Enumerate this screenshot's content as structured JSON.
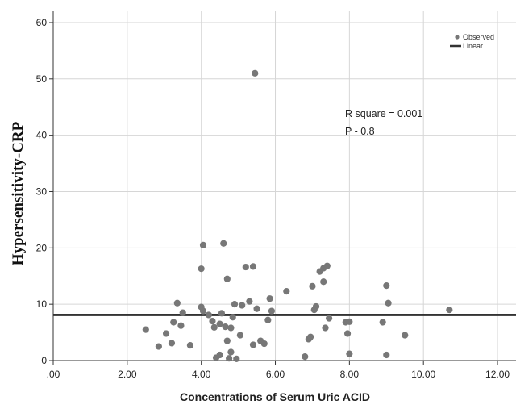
{
  "chart_data": {
    "type": "scatter",
    "title": "",
    "xlabel": "Concentrations of Serum Uric ACID",
    "ylabel": "Hypersensitivity-CRP",
    "xlim": [
      0,
      12.5
    ],
    "ylim": [
      0,
      62
    ],
    "x_ticks": [
      {
        "value": 0,
        "label": ".00"
      },
      {
        "value": 2,
        "label": "2.00"
      },
      {
        "value": 4,
        "label": "4.00"
      },
      {
        "value": 6,
        "label": "6.00"
      },
      {
        "value": 8,
        "label": "8.00"
      },
      {
        "value": 10,
        "label": "10.00"
      },
      {
        "value": 12,
        "label": "12.00"
      }
    ],
    "y_ticks": [
      {
        "value": 0,
        "label": "0"
      },
      {
        "value": 10,
        "label": "10"
      },
      {
        "value": 20,
        "label": "20"
      },
      {
        "value": 30,
        "label": "30"
      },
      {
        "value": 40,
        "label": "40"
      },
      {
        "value": 50,
        "label": "50"
      },
      {
        "value": 60,
        "label": "60"
      }
    ],
    "grid": true,
    "legend": {
      "position": "top-right",
      "entries": [
        {
          "label": "Observed",
          "marker": "point"
        },
        {
          "label": "Linear",
          "marker": "line"
        }
      ]
    },
    "annotations": [
      "R square = 0.001",
      "P - 0.8"
    ],
    "point_color": "#777777",
    "line_color": "#333333",
    "series": [
      {
        "name": "Observed",
        "points": [
          [
            2.5,
            5.5
          ],
          [
            2.85,
            2.5
          ],
          [
            3.05,
            4.8
          ],
          [
            3.2,
            3.1
          ],
          [
            3.25,
            6.8
          ],
          [
            3.35,
            10.2
          ],
          [
            3.45,
            6.2
          ],
          [
            3.5,
            8.5
          ],
          [
            3.7,
            2.7
          ],
          [
            4.05,
            20.5
          ],
          [
            4.0,
            16.3
          ],
          [
            4.0,
            9.5
          ],
          [
            4.05,
            8.8
          ],
          [
            4.2,
            8.1
          ],
          [
            4.3,
            7.0
          ],
          [
            4.35,
            5.9
          ],
          [
            4.4,
            0.5
          ],
          [
            4.5,
            1.0
          ],
          [
            4.5,
            6.5
          ],
          [
            4.55,
            8.4
          ],
          [
            4.6,
            20.8
          ],
          [
            4.65,
            6.0
          ],
          [
            4.7,
            14.5
          ],
          [
            4.7,
            3.5
          ],
          [
            4.75,
            0.4
          ],
          [
            4.8,
            1.5
          ],
          [
            4.8,
            5.8
          ],
          [
            4.85,
            7.7
          ],
          [
            4.9,
            10.0
          ],
          [
            4.95,
            0.3
          ],
          [
            5.05,
            4.5
          ],
          [
            5.1,
            9.8
          ],
          [
            5.2,
            16.6
          ],
          [
            5.3,
            10.5
          ],
          [
            5.4,
            16.7
          ],
          [
            5.45,
            51.0
          ],
          [
            5.4,
            2.8
          ],
          [
            5.5,
            9.2
          ],
          [
            5.6,
            3.5
          ],
          [
            5.7,
            3.0
          ],
          [
            5.8,
            7.2
          ],
          [
            5.85,
            11.0
          ],
          [
            5.9,
            8.8
          ],
          [
            6.3,
            12.3
          ],
          [
            6.8,
            0.7
          ],
          [
            6.9,
            3.8
          ],
          [
            6.95,
            4.2
          ],
          [
            7.0,
            13.2
          ],
          [
            7.05,
            9.0
          ],
          [
            7.1,
            9.6
          ],
          [
            7.2,
            15.8
          ],
          [
            7.3,
            16.4
          ],
          [
            7.3,
            14.0
          ],
          [
            7.35,
            5.8
          ],
          [
            7.4,
            16.8
          ],
          [
            7.45,
            7.5
          ],
          [
            7.9,
            6.8
          ],
          [
            7.95,
            4.8
          ],
          [
            8.0,
            6.9
          ],
          [
            8.0,
            1.2
          ],
          [
            8.9,
            6.8
          ],
          [
            9.0,
            13.3
          ],
          [
            9.0,
            1.0
          ],
          [
            9.05,
            10.2
          ],
          [
            9.5,
            4.5
          ],
          [
            10.7,
            9.0
          ]
        ]
      },
      {
        "name": "Linear",
        "line_y": 8.1
      }
    ]
  }
}
